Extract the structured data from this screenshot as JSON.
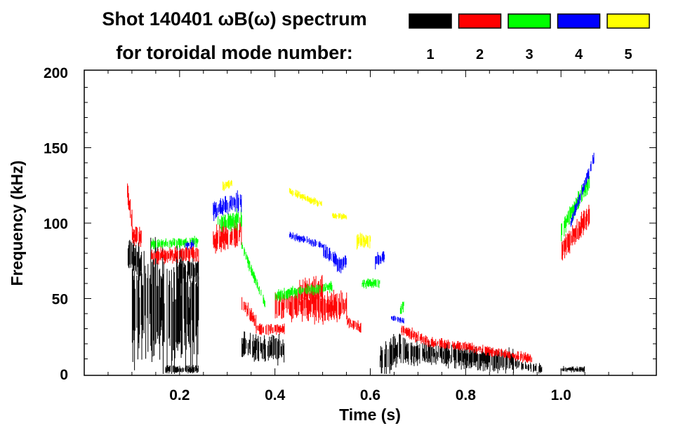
{
  "chart_data": {
    "type": "heatmap",
    "title_line1": "Shot 140401 ωB(ω) spectrum",
    "title_line2": "for toroidal mode number:",
    "xlabel": "Time (s)",
    "ylabel": "Frequency (kHz)",
    "xlim": [
      0.0,
      1.2
    ],
    "ylim": [
      0,
      200
    ],
    "x_ticks": [
      "0.2",
      "0.4",
      "0.6",
      "0.8",
      "1.0"
    ],
    "x_tick_values": [
      0.2,
      0.4,
      0.6,
      0.8,
      1.0
    ],
    "y_ticks": [
      "0",
      "50",
      "100",
      "150",
      "200"
    ],
    "y_tick_values": [
      0,
      50,
      100,
      150,
      200
    ],
    "legend": [
      {
        "label": "1",
        "color": "#000000"
      },
      {
        "label": "2",
        "color": "#ff0000"
      },
      {
        "label": "3",
        "color": "#00ff00"
      },
      {
        "label": "4",
        "color": "#0000ff"
      },
      {
        "label": "5",
        "color": "#ffff00"
      }
    ],
    "modes": [
      {
        "n": 1,
        "color": "#000000",
        "features": [
          [
            0.09,
            80,
            0.12,
            70,
            18
          ],
          [
            0.1,
            45,
            0.24,
            40,
            60
          ],
          [
            0.2,
            68,
            0.24,
            70,
            12
          ],
          [
            0.17,
            3,
            0.24,
            3,
            4
          ],
          [
            0.33,
            18,
            0.42,
            16,
            14
          ],
          [
            0.62,
            10,
            0.67,
            18,
            18
          ],
          [
            0.67,
            15,
            0.9,
            8,
            12
          ],
          [
            0.9,
            7,
            0.96,
            3,
            5
          ],
          [
            1.0,
            3,
            1.05,
            3,
            3
          ]
        ]
      },
      {
        "n": 2,
        "color": "#ff0000",
        "features": [
          [
            0.09,
            120,
            0.1,
            100,
            12
          ],
          [
            0.1,
            92,
            0.12,
            90,
            10
          ],
          [
            0.14,
            78,
            0.24,
            80,
            8
          ],
          [
            0.27,
            88,
            0.33,
            95,
            16
          ],
          [
            0.33,
            48,
            0.36,
            33,
            8
          ],
          [
            0.36,
            30,
            0.42,
            30,
            6
          ],
          [
            0.4,
            45,
            0.55,
            45,
            16
          ],
          [
            0.45,
            55,
            0.5,
            55,
            14
          ],
          [
            0.55,
            35,
            0.58,
            30,
            6
          ],
          [
            0.66,
            30,
            0.72,
            22,
            6
          ],
          [
            0.72,
            21,
            0.8,
            18,
            5
          ],
          [
            0.8,
            18,
            0.94,
            10,
            5
          ],
          [
            1.0,
            82,
            1.06,
            105,
            12
          ]
        ]
      },
      {
        "n": 3,
        "color": "#00ff00",
        "features": [
          [
            0.14,
            86,
            0.24,
            88,
            5
          ],
          [
            0.28,
            100,
            0.33,
            103,
            10
          ],
          [
            0.33,
            85,
            0.38,
            45,
            6
          ],
          [
            0.4,
            52,
            0.52,
            58,
            6
          ],
          [
            0.58,
            60,
            0.62,
            60,
            5
          ],
          [
            0.66,
            40,
            0.67,
            46,
            6
          ],
          [
            1.0,
            95,
            1.06,
            128,
            10
          ]
        ]
      },
      {
        "n": 4,
        "color": "#0000ff",
        "features": [
          [
            0.27,
            108,
            0.33,
            115,
            10
          ],
          [
            0.21,
            85,
            0.23,
            86,
            4
          ],
          [
            0.43,
            92,
            0.5,
            85,
            4
          ],
          [
            0.5,
            82,
            0.54,
            72,
            8
          ],
          [
            0.53,
            72,
            0.55,
            76,
            8
          ],
          [
            0.61,
            75,
            0.63,
            78,
            8
          ],
          [
            1.02,
            100,
            1.07,
            145,
            6
          ],
          [
            0.64,
            38,
            0.67,
            35,
            3
          ]
        ]
      },
      {
        "n": 5,
        "color": "#ffff00",
        "features": [
          [
            0.43,
            121,
            0.5,
            112,
            4
          ],
          [
            0.52,
            105,
            0.55,
            104,
            3
          ],
          [
            0.57,
            88,
            0.6,
            88,
            8
          ],
          [
            0.29,
            124,
            0.31,
            127,
            5
          ]
        ]
      }
    ]
  }
}
